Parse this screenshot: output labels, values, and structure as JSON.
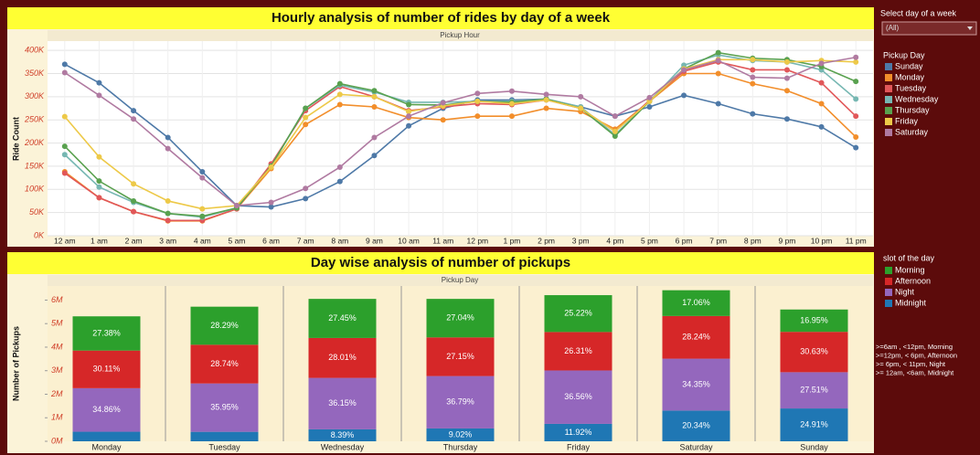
{
  "filter": {
    "label": "Select day of a week",
    "value": "(All)"
  },
  "notes": [
    ">=6am , <12pm, Morning",
    ">=12pm, < 6pm, Afternoon",
    ">= 6pm, < 11pm, Night",
    ">= 12am, <6am, Midnight"
  ],
  "chart_data": [
    {
      "type": "line",
      "title": "Hourly analysis of number of rides by day of a week",
      "x_header": "Pickup Hour",
      "y_label": "Ride Count",
      "legend_title": "Pickup Day",
      "categories": [
        "12 am",
        "1 am",
        "2 am",
        "3 am",
        "4 am",
        "5 am",
        "6 am",
        "7 am",
        "8 am",
        "9 am",
        "10 am",
        "11 am",
        "12 pm",
        "1 pm",
        "2 pm",
        "3 pm",
        "4 pm",
        "5 pm",
        "6 pm",
        "7 pm",
        "8 pm",
        "9 pm",
        "10 pm",
        "11 pm"
      ],
      "ylim": [
        0,
        420000
      ],
      "yticks": [
        {
          "value": 0,
          "label": "0K"
        },
        {
          "value": 50000,
          "label": "50K"
        },
        {
          "value": 100000,
          "label": "100K"
        },
        {
          "value": 150000,
          "label": "150K"
        },
        {
          "value": 200000,
          "label": "200K"
        },
        {
          "value": 250000,
          "label": "250K"
        },
        {
          "value": 300000,
          "label": "300K"
        },
        {
          "value": 350000,
          "label": "350K"
        },
        {
          "value": 400000,
          "label": "400K"
        }
      ],
      "grid": true,
      "series": [
        {
          "name": "Sunday",
          "color": "#4e79a7",
          "values": [
            370000,
            330000,
            270000,
            212000,
            138000,
            65000,
            62000,
            80000,
            117000,
            173000,
            237000,
            275000,
            293000,
            293000,
            295000,
            278000,
            258000,
            278000,
            303000,
            285000,
            263000,
            252000,
            235000,
            190000
          ]
        },
        {
          "name": "Monday",
          "color": "#f28e2b",
          "values": [
            138000,
            82000,
            52000,
            32000,
            32000,
            58000,
            145000,
            240000,
            283000,
            278000,
            255000,
            250000,
            258000,
            258000,
            275000,
            268000,
            230000,
            290000,
            350000,
            350000,
            328000,
            313000,
            285000,
            213000
          ]
        },
        {
          "name": "Tuesday",
          "color": "#e15759",
          "values": [
            135000,
            82000,
            52000,
            33000,
            33000,
            58000,
            155000,
            270000,
            322000,
            300000,
            270000,
            278000,
            285000,
            283000,
            293000,
            275000,
            225000,
            292000,
            355000,
            375000,
            358000,
            358000,
            330000,
            258000
          ]
        },
        {
          "name": "Wednesday",
          "color": "#76b7b2",
          "values": [
            175000,
            105000,
            72000,
            48000,
            40000,
            60000,
            150000,
            275000,
            325000,
            310000,
            288000,
            288000,
            290000,
            290000,
            295000,
            278000,
            218000,
            290000,
            368000,
            390000,
            378000,
            375000,
            358000,
            295000
          ]
        },
        {
          "name": "Thursday",
          "color": "#59a14f",
          "values": [
            193000,
            118000,
            75000,
            48000,
            42000,
            60000,
            150000,
            275000,
            328000,
            313000,
            283000,
            282000,
            290000,
            288000,
            295000,
            275000,
            215000,
            290000,
            360000,
            395000,
            383000,
            380000,
            365000,
            333000
          ]
        },
        {
          "name": "Friday",
          "color": "#edc948",
          "values": [
            257000,
            170000,
            112000,
            75000,
            58000,
            65000,
            148000,
            255000,
            305000,
            300000,
            268000,
            280000,
            290000,
            285000,
            293000,
            275000,
            225000,
            290000,
            360000,
            380000,
            380000,
            375000,
            378000,
            375000
          ]
        },
        {
          "name": "Saturday",
          "color": "#b07aa1",
          "values": [
            352000,
            303000,
            252000,
            188000,
            125000,
            65000,
            72000,
            102000,
            148000,
            212000,
            258000,
            287000,
            307000,
            312000,
            305000,
            300000,
            258000,
            298000,
            358000,
            378000,
            342000,
            340000,
            372000,
            385000
          ]
        }
      ]
    },
    {
      "type": "bar",
      "stacked": true,
      "title": "Day wise analysis of number of pickups",
      "x_header": "Pickup Day",
      "y_label": "Number of Pickups",
      "legend_title": "slot of the day",
      "categories": [
        "Monday",
        "Tuesday",
        "Wednesday",
        "Thursday",
        "Friday",
        "Saturday",
        "Sunday"
      ],
      "ylim": [
        0,
        6600000
      ],
      "yticks": [
        {
          "value": 0,
          "label": "0M"
        },
        {
          "value": 1000000,
          "label": "1M"
        },
        {
          "value": 2000000,
          "label": "2M"
        },
        {
          "value": 3000000,
          "label": "3M"
        },
        {
          "value": 4000000,
          "label": "4M"
        },
        {
          "value": 5000000,
          "label": "5M"
        },
        {
          "value": 6000000,
          "label": "6M"
        }
      ],
      "series": [
        {
          "name": "Morning",
          "color": "#2ca02c",
          "values": [
            1454000,
            1618000,
            1661000,
            1636000,
            1566000,
            1095000,
            949000
          ],
          "percent_labels": [
            "27.38%",
            "28.29%",
            "27.45%",
            "27.04%",
            "25.22%",
            "17.06%",
            "16.95%"
          ]
        },
        {
          "name": "Afternoon",
          "color": "#d62728",
          "values": [
            1599000,
            1644000,
            1695000,
            1643000,
            1634000,
            1813000,
            1715000
          ],
          "percent_labels": [
            "30.11%",
            "28.74%",
            "28.01%",
            "27.15%",
            "26.31%",
            "28.24%",
            "30.63%"
          ]
        },
        {
          "name": "Night",
          "color": "#9467bd",
          "values": [
            1851000,
            2056000,
            2187000,
            2226000,
            2270000,
            2205000,
            1541000
          ],
          "percent_labels": [
            "34.86%",
            "35.95%",
            "36.15%",
            "36.79%",
            "36.56%",
            "34.35%",
            "27.51%"
          ]
        },
        {
          "name": "Midnight",
          "color": "#1f77b4",
          "values": [
            406000,
            402000,
            508000,
            546000,
            740000,
            1306000,
            1395000
          ],
          "percent_labels": [
            null,
            null,
            "8.39%",
            "9.02%",
            "11.92%",
            "20.34%",
            "24.91%"
          ]
        }
      ]
    }
  ]
}
